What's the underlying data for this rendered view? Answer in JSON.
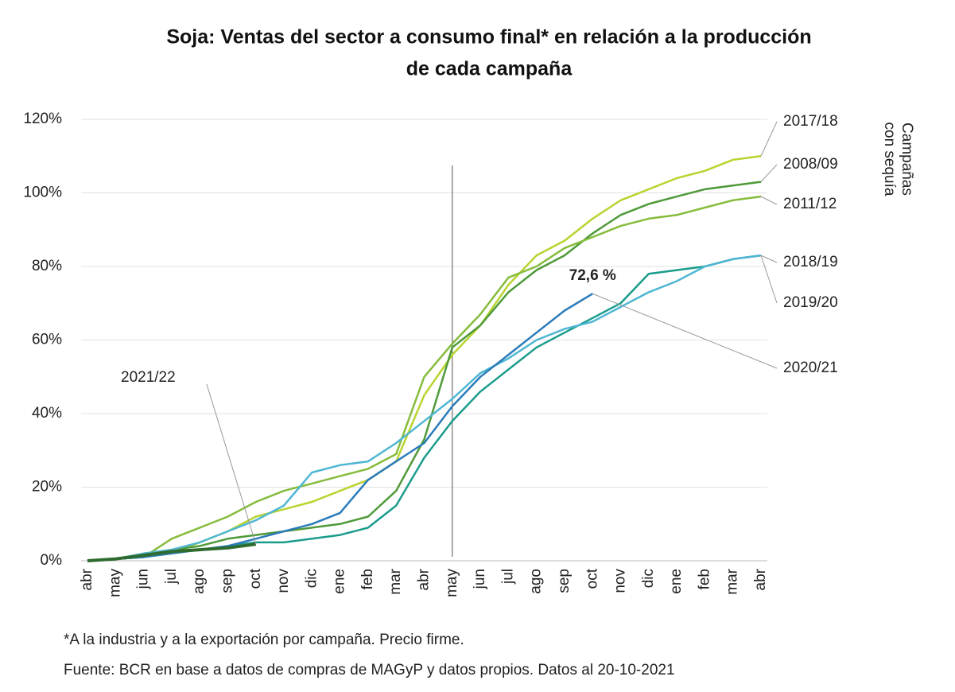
{
  "chart_data": {
    "type": "line",
    "title": [
      "Soja: Ventas del sector a consumo final* en relación a la producción",
      "de cada campaña"
    ],
    "side_note": [
      "Campañas",
      "con sequía"
    ],
    "notes": [
      "*A la industria y a la exportación por campaña. Precio firme.",
      "Fuente: BCR en base a datos de compras de MAGyP y datos propios. Datos al 20-10-2021"
    ],
    "categories": [
      "abr",
      "may",
      "jun",
      "jul",
      "ago",
      "sep",
      "oct",
      "nov",
      "dic",
      "ene",
      "feb",
      "mar",
      "abr",
      "may",
      "jun",
      "jul",
      "ago",
      "sep",
      "oct",
      "nov",
      "dic",
      "ene",
      "feb",
      "mar",
      "abr"
    ],
    "ylim": [
      0,
      120
    ],
    "yticks": [
      {
        "value": 0,
        "label": "0%"
      },
      {
        "value": 20,
        "label": "20%"
      },
      {
        "value": 40,
        "label": "40%"
      },
      {
        "value": 60,
        "label": "60%"
      },
      {
        "value": 80,
        "label": "80%"
      },
      {
        "value": 100,
        "label": "100%"
      },
      {
        "value": 120,
        "label": "120%"
      }
    ],
    "grid": true,
    "series": [
      {
        "name": "2017/18",
        "color": "#b8d430",
        "values": [
          0,
          0.5,
          1,
          2,
          5,
          8,
          12,
          14,
          16,
          19,
          22,
          27,
          45,
          56,
          64,
          75,
          83,
          87,
          93,
          98,
          101,
          104,
          106,
          109,
          110
        ]
      },
      {
        "name": "2008/09",
        "color": "#4f9a3a",
        "values": [
          0,
          0.5,
          1,
          3,
          4,
          6,
          7,
          8,
          9,
          10,
          12,
          19,
          33,
          58,
          64,
          73,
          79,
          83,
          89,
          94,
          97,
          99,
          101,
          102,
          103
        ]
      },
      {
        "name": "2011/12",
        "color": "#86bc3c",
        "values": [
          0,
          0.5,
          1,
          6,
          9,
          12,
          16,
          19,
          21,
          23,
          25,
          29,
          50,
          59,
          67,
          77,
          80,
          85,
          88,
          91,
          93,
          94,
          96,
          98,
          99
        ]
      },
      {
        "name": "2018/19",
        "color": "#1a9c8c",
        "values": [
          0,
          0.5,
          1,
          2,
          3,
          4,
          5,
          5,
          6,
          7,
          9,
          15,
          28,
          38,
          46,
          52,
          58,
          62,
          66,
          70,
          78,
          79,
          80,
          82,
          83
        ]
      },
      {
        "name": "2019/20",
        "color": "#4fb6d3",
        "values": [
          0,
          0.5,
          2,
          3,
          5,
          8,
          11,
          15,
          24,
          26,
          27,
          32,
          38,
          44,
          51,
          55,
          60,
          63,
          65,
          69,
          73,
          76,
          80,
          82,
          83
        ]
      },
      {
        "name": "2020/21",
        "color": "#2b7bba",
        "values": [
          0,
          0.5,
          1,
          2,
          3,
          4,
          6,
          8,
          10,
          13,
          22,
          27,
          32,
          42,
          50,
          56,
          62,
          68,
          72.6,
          null,
          null,
          null,
          null,
          null,
          null
        ],
        "value_labels": [
          null,
          null,
          null,
          null,
          null,
          null,
          null,
          null,
          null,
          null,
          null,
          null,
          null,
          null,
          null,
          null,
          null,
          null,
          "72,6 %",
          null,
          null,
          null,
          null,
          null,
          null
        ]
      },
      {
        "name": "2021/22",
        "color": "#2e6b2e",
        "values": [
          0,
          0.5,
          1.5,
          2.5,
          3,
          3.5,
          4.5,
          null,
          null,
          null,
          null,
          null,
          null,
          null,
          null,
          null,
          null,
          null,
          null,
          null,
          null,
          null,
          null,
          null,
          null
        ]
      }
    ]
  }
}
